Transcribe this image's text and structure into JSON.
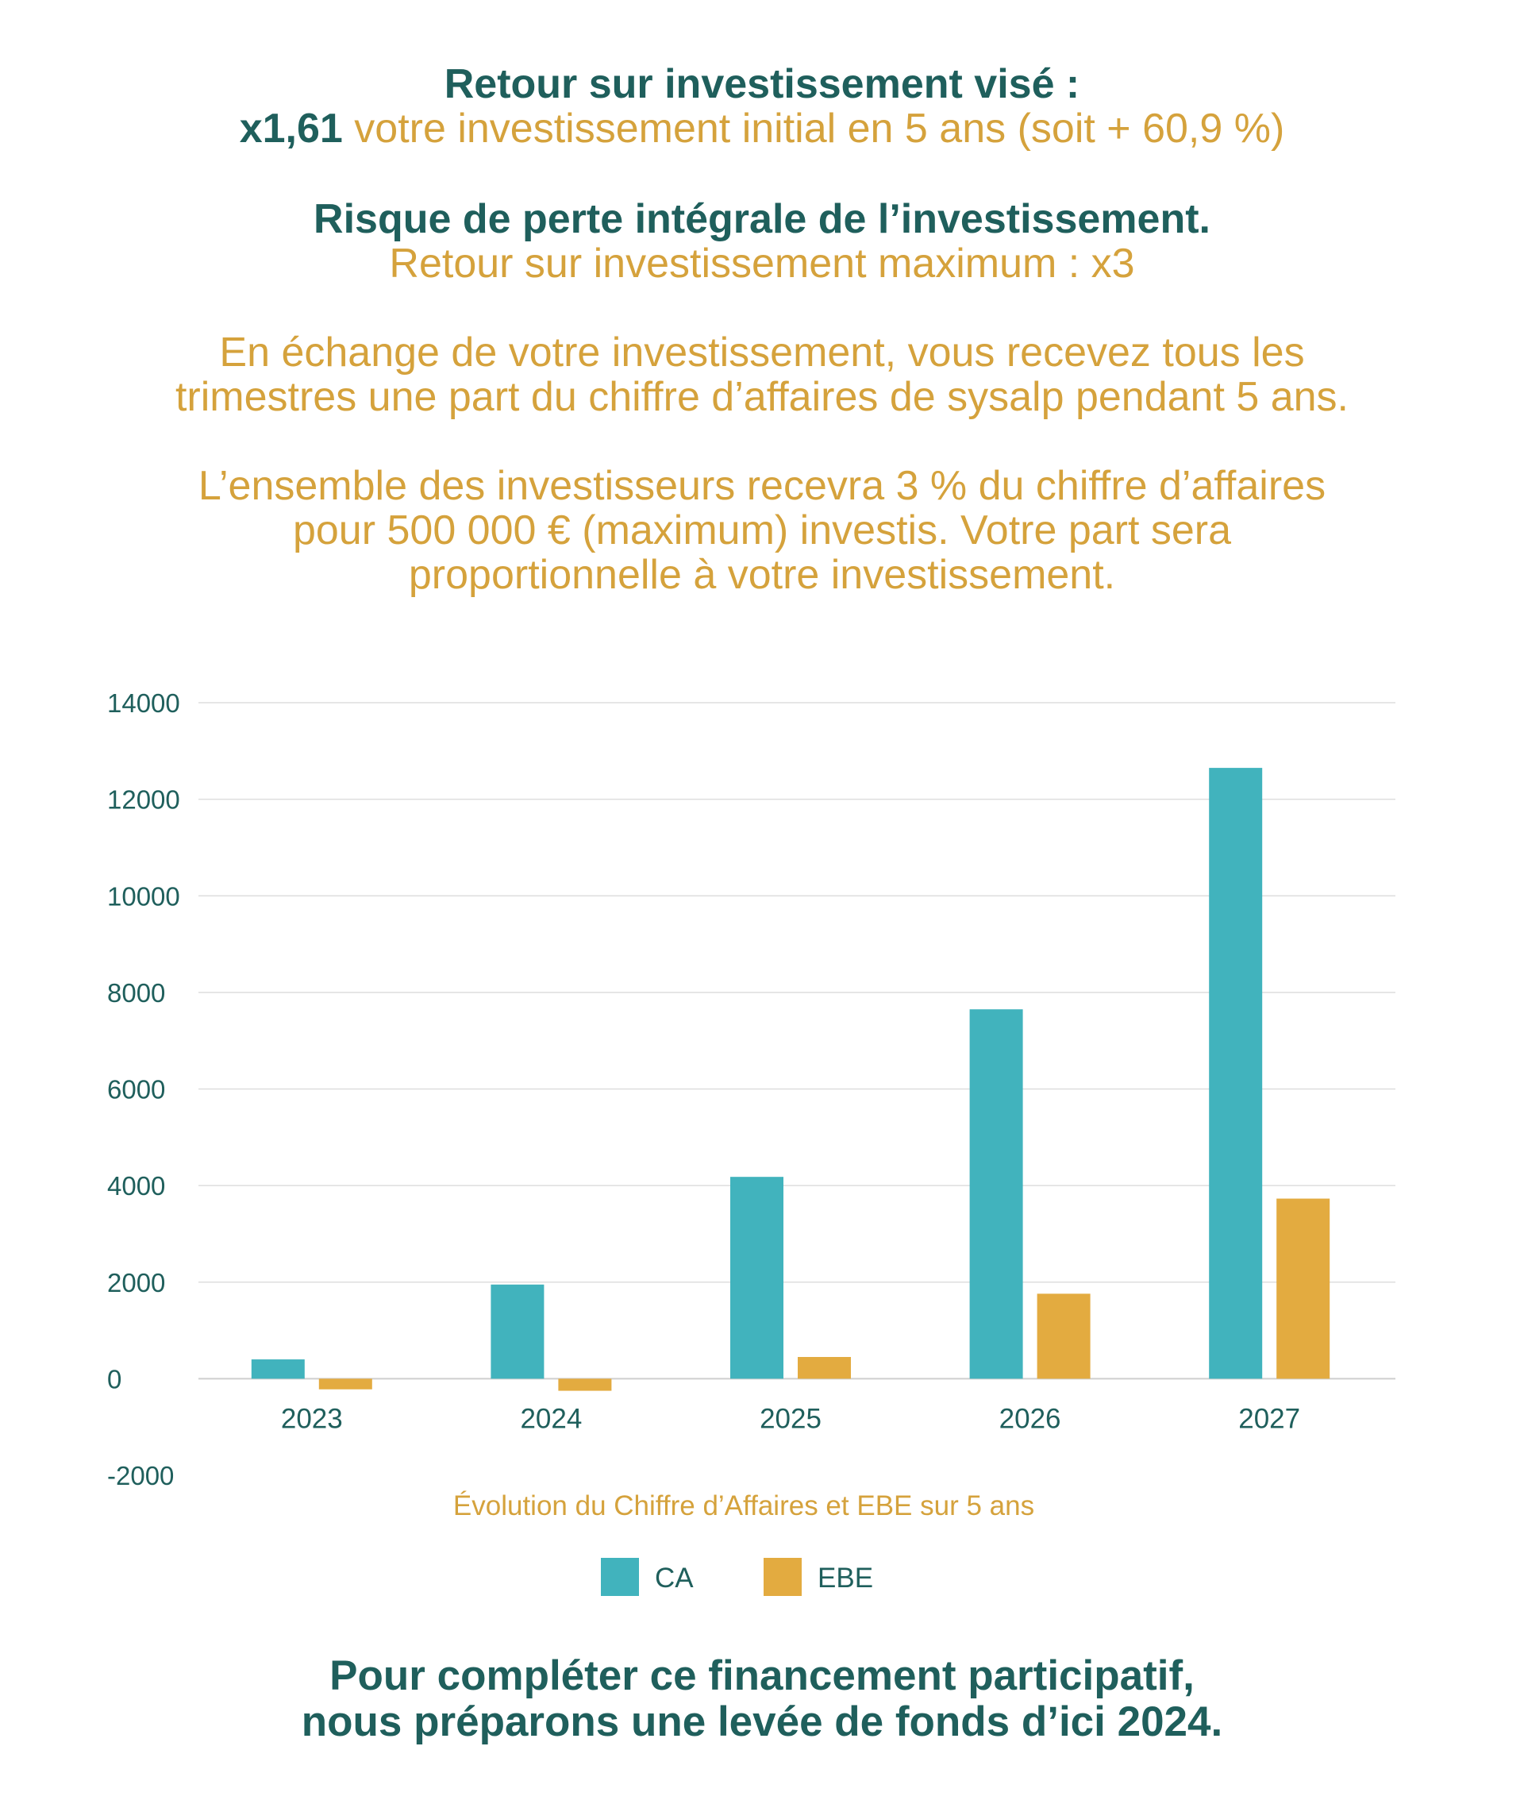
{
  "header": {
    "roi_title": "Retour sur investissement visé :",
    "roi_multiplier": "x1,61",
    "roi_detail": "votre investissement initial en 5 ans (soit + 60,9 %)",
    "risk_title": "Risque de perte intégrale de l’investissement.",
    "roi_max": "Retour sur investissement maximum : x3",
    "exchange_line1": "En échange de votre investissement, vous recevez tous les",
    "exchange_line2": "trimestres une part du chiffre d’affaires de sysalp pendant 5 ans.",
    "investors_line1": "L’ensemble des investisseurs recevra 3 % du chiffre d’affaires",
    "investors_line2": "pour 500 000 € (maximum) investis. Votre part sera",
    "investors_line3": "proportionnelle à votre investissement."
  },
  "chart_data": {
    "type": "bar",
    "title": "Évolution du Chiffre d’Affaires et EBE sur 5 ans",
    "categories": [
      "2023",
      "2024",
      "2025",
      "2026",
      "2027"
    ],
    "series": [
      {
        "name": "CA",
        "color": "#41b3bd",
        "values": [
          400,
          1950,
          4180,
          7650,
          12650
        ]
      },
      {
        "name": "EBE",
        "color": "#e3ab40",
        "values": [
          -220,
          -250,
          450,
          1760,
          3730
        ]
      }
    ],
    "ylim": [
      -2000,
      14000
    ],
    "yticks": [
      14000,
      12000,
      10000,
      8000,
      6000,
      4000,
      2000,
      0,
      -2000
    ],
    "grid": true,
    "legend_position": "bottom"
  },
  "footer": {
    "line1": "Pour compléter ce financement participatif,",
    "line2": "nous préparons une levée de fonds d’ici 2024."
  }
}
